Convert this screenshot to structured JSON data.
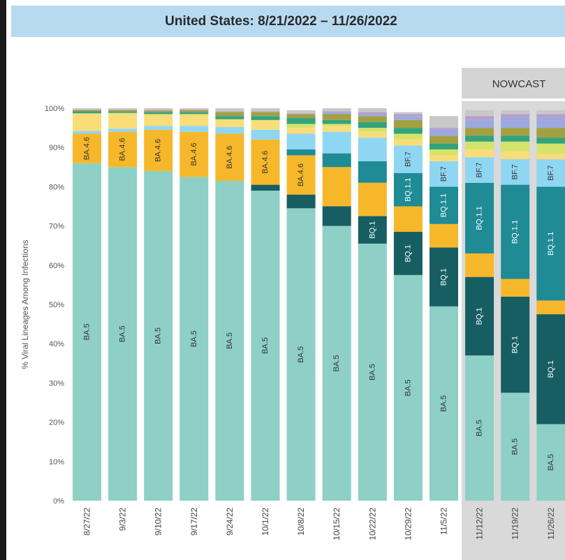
{
  "title": "United States: 8/21/2022 – 11/26/2022",
  "nowcast_label": "NOWCAST",
  "colors": {
    "BA.5": "#8ecfc6",
    "BQ.1": "#175e63",
    "BQ.1.1": "#1e8b95",
    "BF.7": "#8fd6f2",
    "BA.4.6": "#f6b82a",
    "other_light_yellow": "#f8dd78",
    "other_olive": "#a3a042",
    "other_lime": "#d4e36a",
    "other_green": "#33a37c",
    "other_periwinkle": "#9ba9e0",
    "other_purple": "#b59fcd",
    "other_grey": "#c8c8c8"
  },
  "chart_data": {
    "type": "bar",
    "stacked": true,
    "title": "United States: 8/21/2022 – 11/26/2022",
    "ylabel": "% Viral Lineages Among Infections",
    "xlabel": "",
    "ylim": [
      0,
      100
    ],
    "yticks": [
      "0%",
      "10%",
      "20%",
      "30%",
      "40%",
      "50%",
      "60%",
      "70%",
      "80%",
      "90%",
      "100%"
    ],
    "categories": [
      "8/27/22",
      "9/3/22",
      "9/10/22",
      "9/17/22",
      "9/24/22",
      "10/1/22",
      "10/8/22",
      "10/15/22",
      "10/22/22",
      "10/29/22",
      "11/5/22",
      "11/12/22",
      "11/19/22",
      "11/26/22"
    ],
    "nowcast_categories": [
      "11/12/22",
      "11/19/22",
      "11/26/22"
    ],
    "series": [
      {
        "name": "BA.5",
        "color_key": "BA.5",
        "values": [
          86.0,
          85.0,
          84.0,
          82.5,
          81.5,
          79.0,
          74.5,
          70.0,
          65.5,
          57.5,
          49.5,
          37.0,
          27.5,
          19.5
        ]
      },
      {
        "name": "BQ.1",
        "color_key": "BQ.1",
        "values": [
          0,
          0,
          0,
          0,
          0,
          1.5,
          3.5,
          5.0,
          7.0,
          11.0,
          15.0,
          20.0,
          24.5,
          28.0
        ]
      },
      {
        "name": "",
        "color_key": "BA.4.6",
        "values": [
          0,
          0,
          0,
          0,
          0,
          0,
          0,
          10.0,
          8.5,
          6.5,
          6.0,
          6.0,
          4.5,
          3.5
        ]
      },
      {
        "name": "BQ.1.1",
        "color_key": "BQ.1.1",
        "values": [
          0,
          0,
          0,
          0,
          0,
          0,
          0,
          0,
          0,
          8.5,
          9.5,
          18.0,
          24.0,
          29.0
        ]
      },
      {
        "name": "BA.4.6",
        "color_key": "BA.4.6",
        "values": [
          7.5,
          9.0,
          10.5,
          11.5,
          12.0,
          11.5,
          10.0,
          0,
          0,
          0,
          0,
          0,
          0,
          0
        ]
      },
      {
        "name": "",
        "color_key": "BQ.1.1",
        "values": [
          0,
          0,
          0,
          0,
          0,
          0,
          1.5,
          3.5,
          5.5,
          0,
          0,
          0,
          0,
          0
        ]
      },
      {
        "name": "BF.7",
        "color_key": "BF.7",
        "values": [
          0.7,
          0.8,
          1.0,
          1.5,
          1.7,
          2.5,
          4.0,
          5.5,
          6.0,
          7.0,
          6.5,
          6.5,
          6.5,
          7.0
        ]
      },
      {
        "name": "",
        "color_key": "other_light_yellow",
        "values": [
          4.5,
          4.0,
          3.0,
          3.0,
          2.0,
          2.5,
          1.5,
          1.5,
          1.5,
          1.5,
          1.5,
          2.0,
          2.0,
          1.5
        ]
      },
      {
        "name": "",
        "color_key": "other_lime",
        "values": [
          0,
          0,
          0,
          0,
          0,
          0,
          1.0,
          0.5,
          1.0,
          1.5,
          1.5,
          2.0,
          2.5,
          2.5
        ]
      },
      {
        "name": "",
        "color_key": "other_green",
        "values": [
          0.5,
          0.3,
          0.5,
          0.5,
          0.8,
          1.0,
          1.5,
          1.0,
          1.5,
          1.5,
          1.5,
          1.5,
          1.5,
          1.5
        ]
      },
      {
        "name": "",
        "color_key": "other_olive",
        "values": [
          0.3,
          0.4,
          0.4,
          0.5,
          1.0,
          1.0,
          1.0,
          1.5,
          1.5,
          2.0,
          2.0,
          2.0,
          2.0,
          2.5
        ]
      },
      {
        "name": "",
        "color_key": "other_periwinkle",
        "values": [
          0,
          0,
          0,
          0,
          0,
          0,
          0,
          0.5,
          0.5,
          1.0,
          1.5,
          2.0,
          2.5,
          2.5
        ]
      },
      {
        "name": "",
        "color_key": "other_purple",
        "values": [
          0.2,
          0.2,
          0.2,
          0.2,
          0.2,
          0.2,
          0.2,
          0.2,
          0.5,
          0.5,
          0.5,
          1.0,
          1.0,
          1.0
        ]
      },
      {
        "name": "",
        "color_key": "other_grey",
        "values": [
          0.3,
          0.3,
          0.4,
          0.3,
          0.8,
          0.8,
          0.8,
          0.8,
          1.0,
          0.5,
          3.0,
          1.5,
          1.0,
          1.0
        ]
      }
    ],
    "segment_labels": [
      [
        "BA.5",
        null,
        null,
        null,
        "BA.4.6",
        null,
        null,
        null,
        null,
        null,
        null,
        null,
        null,
        null
      ],
      [
        "BA.5",
        null,
        null,
        null,
        "BA.4.6",
        null,
        null,
        null,
        null,
        null,
        null,
        null,
        null,
        null
      ],
      [
        "BA.5",
        null,
        null,
        null,
        "BA.4.6",
        null,
        null,
        null,
        null,
        null,
        null,
        null,
        null,
        null
      ],
      [
        "BA.5",
        null,
        null,
        null,
        "BA.4.6",
        null,
        null,
        null,
        null,
        null,
        null,
        null,
        null,
        null
      ],
      [
        "BA.5",
        null,
        null,
        null,
        "BA.4.6",
        null,
        null,
        null,
        null,
        null,
        null,
        null,
        null,
        null
      ],
      [
        "BA.5",
        null,
        null,
        null,
        "BA.4.6",
        null,
        null,
        null,
        null,
        null,
        null,
        null,
        null,
        null
      ],
      [
        "BA.5",
        null,
        null,
        null,
        "BA.4.6",
        null,
        null,
        null,
        null,
        null,
        null,
        null,
        null,
        null
      ],
      [
        "BA.5",
        null,
        null,
        null,
        null,
        null,
        null,
        null,
        null,
        null,
        null,
        null,
        null,
        null
      ],
      [
        "BA.5",
        "BQ.1",
        null,
        null,
        null,
        null,
        null,
        null,
        null,
        null,
        null,
        null,
        null,
        null
      ],
      [
        "BA.5",
        "BQ.1",
        null,
        "BQ.1.1",
        null,
        null,
        "BF.7",
        null,
        null,
        null,
        null,
        null,
        null,
        null
      ],
      [
        "BA.5",
        "BQ.1",
        null,
        "BQ.1.1",
        null,
        null,
        "BF.7",
        null,
        null,
        null,
        null,
        null,
        null,
        null
      ],
      [
        "BA.5",
        "BQ.1",
        null,
        "BQ.1.1",
        null,
        null,
        "BF.7",
        null,
        null,
        null,
        null,
        null,
        null,
        null
      ],
      [
        "BA.5",
        "BQ.1",
        null,
        "BQ.1.1",
        null,
        null,
        "BF.7",
        null,
        null,
        null,
        null,
        null,
        null,
        null
      ],
      [
        "BA.5",
        "BQ.1",
        null,
        "BQ.1.1",
        null,
        null,
        "BF.7",
        null,
        null,
        null,
        null,
        null,
        null,
        null
      ]
    ],
    "grid": false,
    "legend": "none"
  }
}
